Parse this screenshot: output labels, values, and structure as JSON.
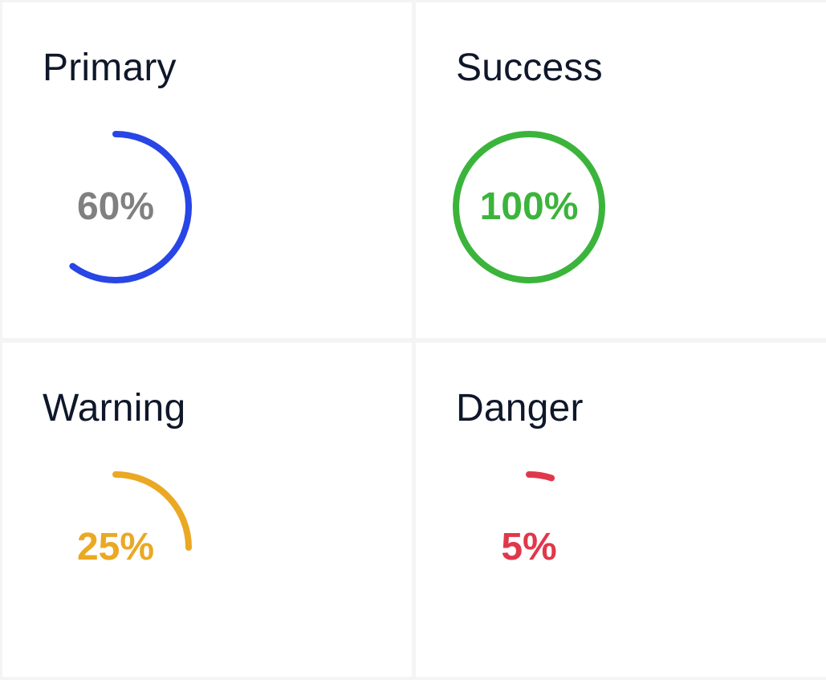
{
  "colors": {
    "primary": "#2845e6",
    "success": "#3bb43b",
    "warning": "#eba823",
    "danger": "#e0384b",
    "muted_text": "#808080",
    "title_text": "#0f172a"
  },
  "cards": [
    {
      "title": "Primary",
      "value": 60,
      "label": "60%",
      "color": "#2845e6",
      "label_color": "#808080"
    },
    {
      "title": "Success",
      "value": 100,
      "label": "100%",
      "color": "#3bb43b",
      "label_color": "#3bb43b"
    },
    {
      "title": "Warning",
      "value": 25,
      "label": "25%",
      "color": "#eba823",
      "label_color": "#eba823"
    },
    {
      "title": "Danger",
      "value": 5,
      "label": "5%",
      "color": "#e0384b",
      "label_color": "#e0384b"
    }
  ]
}
